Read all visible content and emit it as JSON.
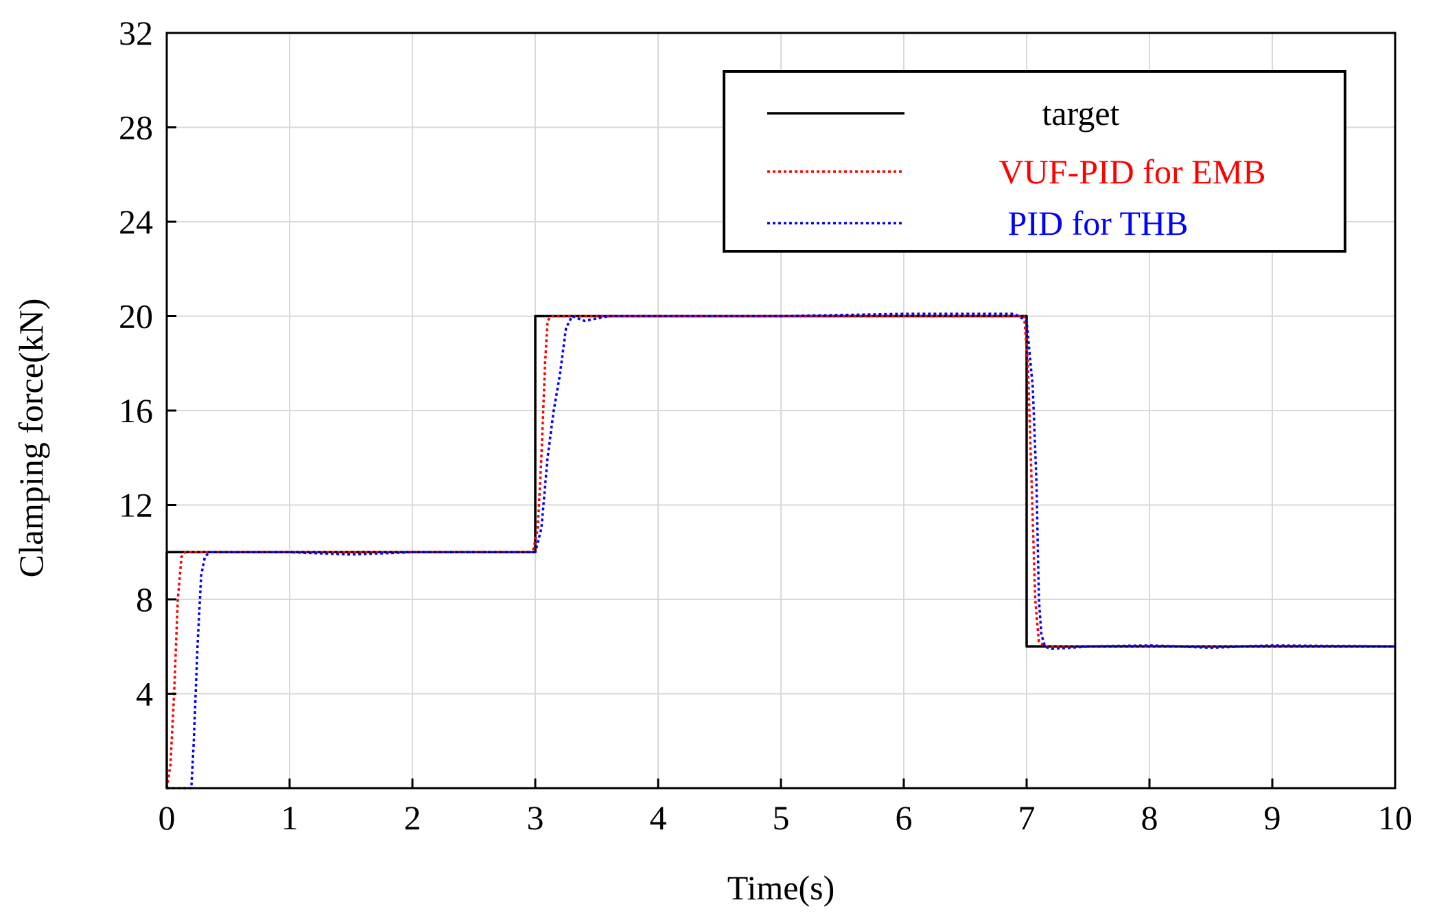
{
  "chart_data": {
    "type": "line",
    "title": "",
    "xlabel": "Time(s)",
    "ylabel": "Clamping force(kN)",
    "xlim": [
      0,
      10
    ],
    "ylim": [
      0,
      32
    ],
    "xticks": [
      0,
      1,
      2,
      3,
      4,
      5,
      6,
      7,
      8,
      9,
      10
    ],
    "yticks": [
      4,
      8,
      12,
      16,
      20,
      24,
      28,
      32
    ],
    "grid": true,
    "legend_position": "top-right",
    "series": [
      {
        "name": "target",
        "color": "#000000",
        "style": "solid",
        "x": [
          0,
          0,
          3,
          3,
          7,
          7,
          10
        ],
        "y": [
          0,
          10,
          10,
          20,
          20,
          6,
          6
        ]
      },
      {
        "name": "VUF-PID for EMB",
        "color": "#ff0000",
        "style": "dotted",
        "x": [
          0,
          0.03,
          0.06,
          0.09,
          0.12,
          0.15,
          0.5,
          1.0,
          2.0,
          2.98,
          3.02,
          3.05,
          3.08,
          3.1,
          3.13,
          3.2,
          4.0,
          5.0,
          6.0,
          6.98,
          7.01,
          7.04,
          7.07,
          7.1,
          7.15,
          8.0,
          9.0,
          10.0
        ],
        "y": [
          0,
          1,
          4,
          8,
          9.8,
          10,
          10,
          10,
          10,
          10,
          11,
          14,
          18,
          19.8,
          20,
          20,
          20,
          20,
          20,
          20,
          18,
          13,
          8,
          6.2,
          6,
          6,
          6,
          6
        ]
      },
      {
        "name": "PID for THB",
        "color": "#0000ff",
        "style": "dotted",
        "x": [
          0,
          0.2,
          0.22,
          0.25,
          0.28,
          0.31,
          0.35,
          0.5,
          1.0,
          1.5,
          2.0,
          2.5,
          3.0,
          3.05,
          3.1,
          3.15,
          3.2,
          3.25,
          3.3,
          3.35,
          3.4,
          3.5,
          3.6,
          4.0,
          5.0,
          6.0,
          6.9,
          7.0,
          7.05,
          7.08,
          7.1,
          7.12,
          7.15,
          7.2,
          7.5,
          8.0,
          8.5,
          9.0,
          10.0
        ],
        "y": [
          0,
          0,
          2,
          6,
          9,
          9.8,
          10,
          10,
          10,
          9.9,
          10,
          10,
          10,
          11,
          14,
          16,
          17.5,
          19.5,
          20,
          19.9,
          19.8,
          19.9,
          20,
          20,
          20,
          20.1,
          20.1,
          19.8,
          17,
          13,
          8,
          6.5,
          6,
          5.9,
          6,
          6.05,
          5.95,
          6.05,
          6
        ]
      }
    ]
  }
}
